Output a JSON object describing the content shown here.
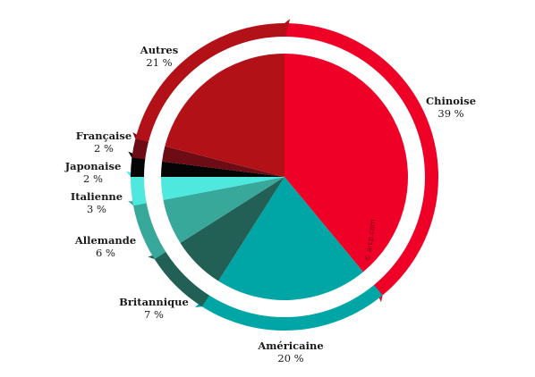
{
  "chart_data": {
    "type": "pie",
    "categories": [
      "Chinoise",
      "Américaine",
      "Britannique",
      "Allemande",
      "Italienne",
      "Japonaise",
      "Française",
      "Autres"
    ],
    "values": [
      39,
      20,
      7,
      6,
      3,
      2,
      2,
      21
    ],
    "value_labels": [
      "39 %",
      "20 %",
      "7 %",
      "6 %",
      "3 %",
      "2 %",
      "2 %",
      "21 %"
    ],
    "colors": [
      "#ee0027",
      "#00a5a5",
      "#226055",
      "#38a89b",
      "#4ee8de",
      "#050505",
      "#6e0c16",
      "#b21217"
    ],
    "watermark": "© arcp.com"
  }
}
